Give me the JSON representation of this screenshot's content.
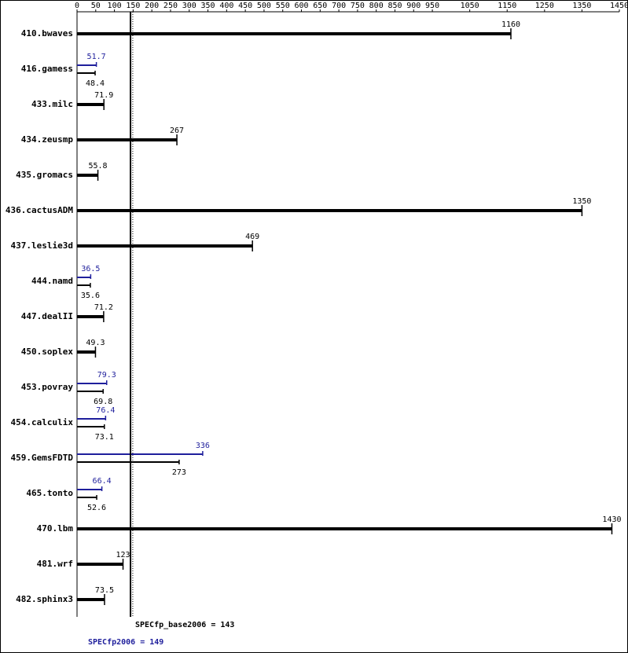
{
  "chart_data": {
    "type": "bar",
    "categories": [
      "410.bwaves",
      "416.gamess",
      "433.milc",
      "434.zeusmp",
      "435.gromacs",
      "436.cactusADM",
      "437.leslie3d",
      "444.namd",
      "447.dealII",
      "450.soplex",
      "453.povray",
      "454.calculix",
      "459.GemsFDTD",
      "465.tonto",
      "470.lbm",
      "481.wrf",
      "482.sphinx3"
    ],
    "series": [
      {
        "name": "SPECfp_base2006",
        "color": "#000000",
        "mean": 143,
        "mean_label": "SPECfp_base2006 = 143",
        "values": [
          1160,
          48.4,
          71.9,
          267,
          55.8,
          1350,
          469,
          35.6,
          71.2,
          49.3,
          69.8,
          73.1,
          273,
          52.6,
          1430,
          123,
          73.5
        ]
      },
      {
        "name": "SPECfp2006",
        "color": "#1f1f9c",
        "mean": 149,
        "mean_label": "SPECfp2006 = 149",
        "values": [
          null,
          51.7,
          null,
          null,
          null,
          null,
          null,
          36.5,
          null,
          null,
          79.3,
          76.4,
          336,
          66.4,
          null,
          null,
          null
        ]
      }
    ],
    "xlim": [
      0,
      1450
    ],
    "xticks": [
      0,
      50,
      100,
      150,
      200,
      250,
      300,
      350,
      400,
      450,
      500,
      550,
      600,
      650,
      700,
      750,
      800,
      850,
      900,
      950,
      1050,
      1150,
      1250,
      1350,
      1450
    ]
  }
}
